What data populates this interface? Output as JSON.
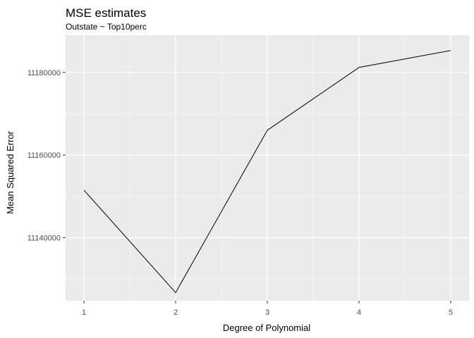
{
  "chart_data": {
    "type": "line",
    "title": "MSE estimates",
    "subtitle": "Outstate ~ Top10perc",
    "xlabel": "Degree of Polynomial",
    "ylabel": "Mean Squared Error",
    "x": [
      1,
      2,
      3,
      4,
      5
    ],
    "series": [
      {
        "values": [
          11151500,
          11126700,
          11166000,
          11181200,
          11185300
        ]
      }
    ],
    "x_ticks": [
      1,
      2,
      3,
      4,
      5
    ],
    "x_tick_labels": [
      "1",
      "2",
      "3",
      "4",
      "5"
    ],
    "y_ticks": [
      11140000,
      11160000,
      11180000
    ],
    "y_tick_labels": [
      "11140000",
      "11160000",
      "11180000"
    ],
    "xlim": [
      0.8,
      5.2
    ],
    "ylim": [
      11124750,
      11189000
    ],
    "grid": true,
    "legend": "none",
    "colors": {
      "panel_background": "#ebebeb",
      "grid_major": "#ffffff",
      "grid_minor": "#f7f7f7",
      "line": "#000000",
      "tick_text": "#4d4d4d",
      "title_text": "#000000"
    }
  }
}
